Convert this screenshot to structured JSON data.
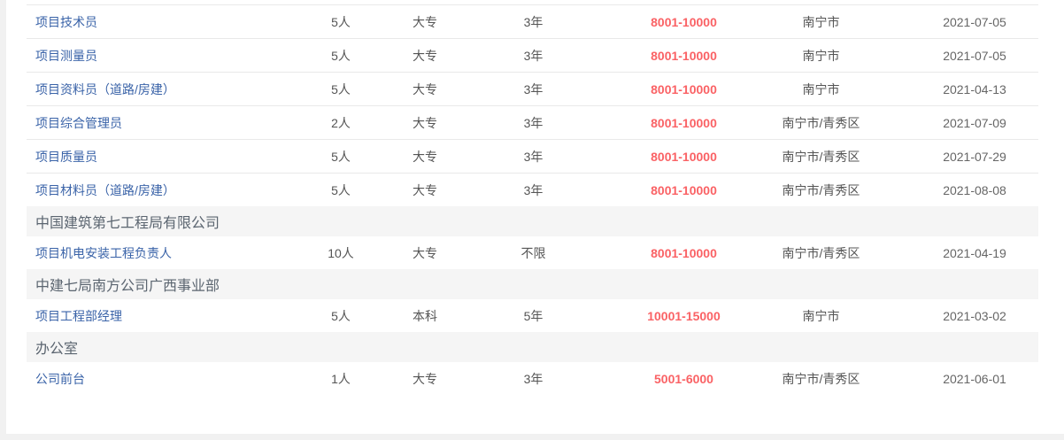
{
  "colors": {
    "page_background": "#f1f1f1",
    "card_background": "#ffffff",
    "link_blue": "#3a63a8",
    "salary_red": "#fa6265",
    "cell_text": "#555555",
    "date_text": "#666666",
    "divider": "#e9e9e9",
    "section_background": "#f5f5f5",
    "section_text": "#5b6570"
  },
  "job_table": {
    "rows": [
      {
        "type": "job",
        "title": "项目技术员",
        "count": "5人",
        "education": "大专",
        "experience": "3年",
        "salary": "8001-10000",
        "location": "南宁市",
        "date": "2021-07-05"
      },
      {
        "type": "job",
        "title": "项目测量员",
        "count": "5人",
        "education": "大专",
        "experience": "3年",
        "salary": "8001-10000",
        "location": "南宁市",
        "date": "2021-07-05"
      },
      {
        "type": "job",
        "title": "项目资料员（道路/房建）",
        "count": "5人",
        "education": "大专",
        "experience": "3年",
        "salary": "8001-10000",
        "location": "南宁市",
        "date": "2021-04-13"
      },
      {
        "type": "job",
        "title": "项目综合管理员",
        "count": "2人",
        "education": "大专",
        "experience": "3年",
        "salary": "8001-10000",
        "location": "南宁市/青秀区",
        "date": "2021-07-09"
      },
      {
        "type": "job",
        "title": "项目质量员",
        "count": "5人",
        "education": "大专",
        "experience": "3年",
        "salary": "8001-10000",
        "location": "南宁市/青秀区",
        "date": "2021-07-29"
      },
      {
        "type": "job",
        "title": "项目材料员（道路/房建）",
        "count": "5人",
        "education": "大专",
        "experience": "3年",
        "salary": "8001-10000",
        "location": "南宁市/青秀区",
        "date": "2021-08-08"
      },
      {
        "type": "section",
        "title": "中国建筑第七工程局有限公司"
      },
      {
        "type": "job",
        "title": "项目机电安装工程负责人",
        "count": "10人",
        "education": "大专",
        "experience": "不限",
        "salary": "8001-10000",
        "location": "南宁市/青秀区",
        "date": "2021-04-19"
      },
      {
        "type": "section",
        "title": "中建七局南方公司广西事业部"
      },
      {
        "type": "job",
        "title": "项目工程部经理",
        "count": "5人",
        "education": "本科",
        "experience": "5年",
        "salary": "10001-15000",
        "location": "南宁市",
        "date": "2021-03-02"
      },
      {
        "type": "section",
        "title": "办公室"
      },
      {
        "type": "job",
        "title": "公司前台",
        "count": "1人",
        "education": "大专",
        "experience": "3年",
        "salary": "5001-6000",
        "location": "南宁市/青秀区",
        "date": "2021-06-01"
      }
    ]
  }
}
